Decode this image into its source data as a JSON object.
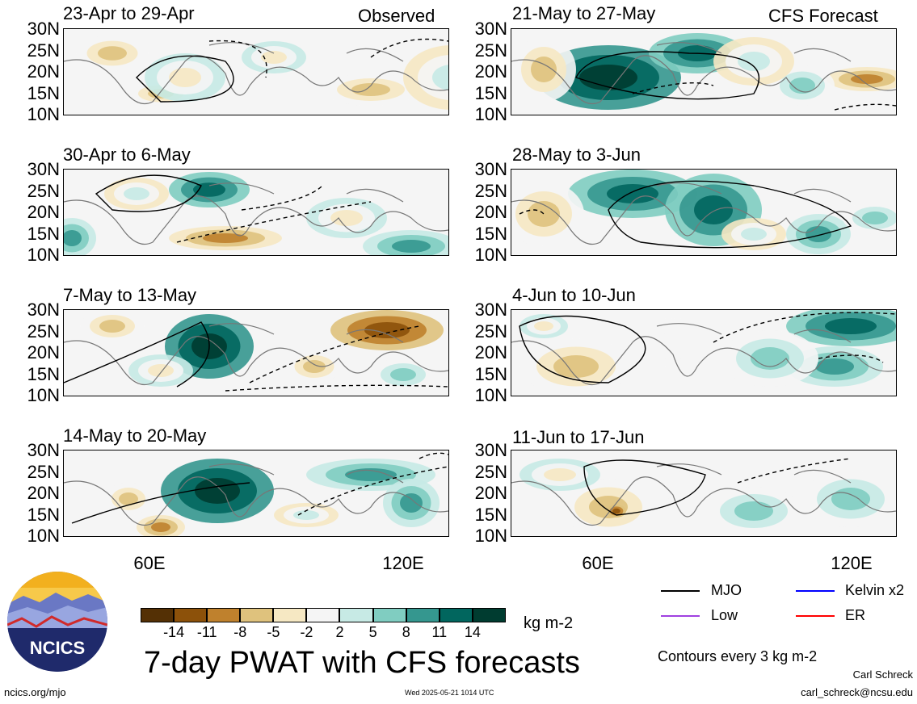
{
  "left_header": "Observed",
  "right_header": "CFS Forecast",
  "lat_labels": [
    "30N",
    "25N",
    "20N",
    "15N",
    "10N"
  ],
  "lon_labels": [
    "60E",
    "120E"
  ],
  "panels_left": [
    {
      "title": "23-Apr to 29-Apr"
    },
    {
      "title": "30-Apr to 6-May"
    },
    {
      "title": "7-May to 13-May"
    },
    {
      "title": "14-May to 20-May"
    }
  ],
  "panels_right": [
    {
      "title": "21-May to 27-May"
    },
    {
      "title": "28-May to 3-Jun"
    },
    {
      "title": "4-Jun to 10-Jun"
    },
    {
      "title": "11-Jun to 17-Jun"
    }
  ],
  "colorbar": {
    "ticks": [
      "-14",
      "-11",
      "-8",
      "-5",
      "-2",
      "2",
      "5",
      "8",
      "11",
      "14"
    ],
    "colors": [
      "#543005",
      "#8c510a",
      "#bf812d",
      "#dfc27d",
      "#f6e8c3",
      "#f5f5f5",
      "#c7eae5",
      "#80cdc1",
      "#35978f",
      "#01665e",
      "#003c30"
    ],
    "unit": "kg m-2"
  },
  "legend": {
    "items": [
      {
        "label": "MJO",
        "color": "#000000"
      },
      {
        "label": "Kelvin x2",
        "color": "#0000ff"
      },
      {
        "label": "Low",
        "color": "#a040e0"
      },
      {
        "label": "ER",
        "color": "#ff0000"
      }
    ],
    "note": "Contours every 3 kg m-2"
  },
  "title": "7-day PWAT with CFS forecasts",
  "author": "Carl Schreck",
  "email": "carl_schreck@ncsu.edu",
  "site": "ncics.org/mjo",
  "timestamp": "Wed 2025-05-21 1014 UTC",
  "logo_text": "NCICS"
}
